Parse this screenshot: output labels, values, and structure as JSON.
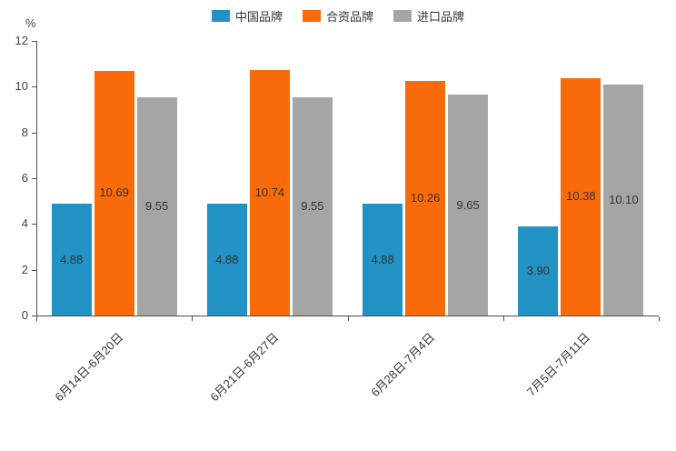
{
  "chart_data": {
    "type": "bar",
    "categories": [
      "6月14日-6月20日",
      "6月21日-6月27日",
      "6月28日-7月4日",
      "7月5日-7月11日"
    ],
    "series": [
      {
        "name": "中国品牌",
        "color": "#2292c4",
        "values": [
          4.88,
          4.88,
          4.88,
          3.9
        ]
      },
      {
        "name": "合资品牌",
        "color": "#f96a0b",
        "values": [
          10.69,
          10.74,
          10.26,
          10.38
        ]
      },
      {
        "name": "进口品牌",
        "color": "#a5a5a5",
        "values": [
          9.55,
          9.55,
          9.65,
          10.1
        ]
      }
    ],
    "title": "",
    "xlabel": "",
    "ylabel": "%",
    "ylim": [
      0,
      12
    ],
    "yticks": [
      0,
      2,
      4,
      6,
      8,
      10,
      12
    ],
    "legend_position": "top",
    "grid": false,
    "value_label_decimals": 2
  }
}
